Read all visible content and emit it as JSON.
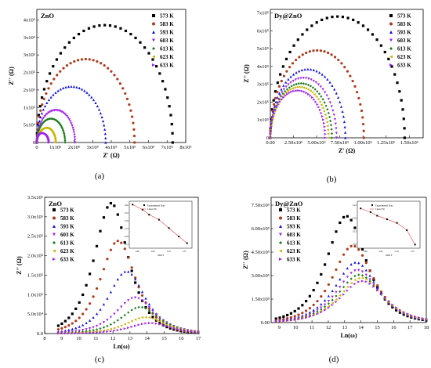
{
  "figure": {
    "colors": {
      "573 K": "#000000",
      "583 K": "#b03a1a",
      "593 K": "#1010e0",
      "603 K": "#a020f0",
      "613 K": "#1a7a1a",
      "623 K": "#c8b400",
      "633 K": "#a020f0"
    }
  },
  "chart_data": [
    {
      "id": "a",
      "type": "scatter",
      "caption": "(a)",
      "title": "ZnO",
      "xlabel": "Z' (Ω)",
      "ylabel": "Z'' (Ω)",
      "xlim": [
        0,
        800000
      ],
      "ylim": [
        0,
        380000
      ],
      "xticks": [
        0,
        100000,
        200000,
        300000,
        400000,
        500000,
        600000,
        700000,
        800000
      ],
      "xtick_labels": [
        "0",
        "1x10⁵",
        "2x10⁵",
        "3x10⁵",
        "4x10⁵",
        "5x10⁵",
        "6x10⁵",
        "7x10⁵",
        "8x10⁵"
      ],
      "yticks": [
        0,
        50000,
        100000,
        150000,
        200000,
        250000,
        300000,
        350000
      ],
      "ytick_labels": [
        "0",
        "5x10⁴",
        "1x10⁵",
        "2x10⁵",
        "2x10⁵",
        "3x10⁵",
        "3x10⁵",
        "4x10⁵"
      ],
      "legend_position": "top-right",
      "series": [
        {
          "name": "573 K",
          "kind": "arc",
          "r0": 0,
          "r1": 730000,
          "peak": 335000,
          "marker": "square"
        },
        {
          "name": "583 K",
          "kind": "arc",
          "r0": 0,
          "r1": 525000,
          "peak": 238000,
          "marker": "circle"
        },
        {
          "name": "593 K",
          "kind": "arc",
          "r0": 0,
          "r1": 370000,
          "peak": 160000,
          "marker": "triangle"
        },
        {
          "name": "603 K",
          "kind": "arc",
          "r0": 0,
          "r1": 205000,
          "peak": 92000,
          "marker": "triangle-down"
        },
        {
          "name": "613 K",
          "kind": "arc",
          "r0": 0,
          "r1": 152000,
          "peak": 68000,
          "marker": "diamond"
        },
        {
          "name": "623 K",
          "kind": "arc",
          "r0": 0,
          "r1": 100000,
          "peak": 42000,
          "marker": "triangle-left"
        },
        {
          "name": "633 K",
          "kind": "arc",
          "r0": 0,
          "r1": 65000,
          "peak": 27000,
          "marker": "triangle-right"
        }
      ]
    },
    {
      "id": "b",
      "type": "scatter",
      "caption": "(b)",
      "title": "Dy@ZnO",
      "xlabel": "Z' (Ω)",
      "ylabel": "Z'' (Ω)",
      "xlim": [
        0,
        1650000
      ],
      "ylim": [
        0,
        720000
      ],
      "xticks": [
        0,
        250000,
        500000,
        750000,
        1000000,
        1250000,
        1500000
      ],
      "xtick_labels": [
        "0.00",
        "2.50x10⁵",
        "5.00x10⁵",
        "7.50x10⁵",
        "1.00x10⁶",
        "1.25x10⁶",
        "1.50x10⁶"
      ],
      "yticks": [
        0,
        100000,
        200000,
        300000,
        400000,
        500000,
        600000,
        700000
      ],
      "ytick_labels": [
        "0",
        "1x10⁵",
        "2x10⁵",
        "3x10⁵",
        "4x10⁵",
        "5x10⁵",
        "6x10⁵",
        "7x10⁵"
      ],
      "legend_position": "top-right",
      "series": [
        {
          "name": "573 K",
          "kind": "arc",
          "r0": 0,
          "r1": 1450000,
          "peak": 680000,
          "marker": "square"
        },
        {
          "name": "583 K",
          "kind": "arc",
          "r0": 0,
          "r1": 1010000,
          "peak": 490000,
          "marker": "circle"
        },
        {
          "name": "593 K",
          "kind": "arc",
          "r0": 0,
          "r1": 810000,
          "peak": 385000,
          "marker": "triangle"
        },
        {
          "name": "603 K",
          "kind": "arc",
          "r0": 0,
          "r1": 715000,
          "peak": 335000,
          "marker": "triangle-down"
        },
        {
          "name": "613 K",
          "kind": "arc",
          "r0": 0,
          "r1": 665000,
          "peak": 305000,
          "marker": "diamond"
        },
        {
          "name": "623 K",
          "kind": "arc",
          "r0": 0,
          "r1": 625000,
          "peak": 285000,
          "marker": "triangle-left"
        },
        {
          "name": "633 K",
          "kind": "arc",
          "r0": 0,
          "r1": 595000,
          "peak": 265000,
          "marker": "triangle-right"
        }
      ]
    },
    {
      "id": "c",
      "type": "scatter",
      "caption": "(c)",
      "title": "ZnO",
      "xlabel": "Ln(ω)",
      "ylabel": "Z'' (Ω)",
      "xlim": [
        8,
        17
      ],
      "ylim": [
        0,
        350000
      ],
      "xticks": [
        8,
        9,
        10,
        11,
        12,
        13,
        14,
        15,
        16,
        17
      ],
      "xtick_labels": [
        "8",
        "9",
        "10",
        "11",
        "12",
        "13",
        "14",
        "15",
        "16",
        "17"
      ],
      "yticks": [
        0,
        50000,
        100000,
        150000,
        200000,
        250000,
        300000,
        350000
      ],
      "ytick_labels": [
        "0.0",
        "5.0x10⁴",
        "1.0x10⁵",
        "1.5x10⁵",
        "2.0x10⁵",
        "2.5x10⁵",
        "3.0x10⁵",
        "3.5x10⁵"
      ],
      "legend_position": "top-left",
      "series": [
        {
          "name": "573 K",
          "kind": "peak",
          "x_start": 8.8,
          "x_end": 17,
          "center": 11.9,
          "peak": 335000,
          "width": 1.15,
          "marker": "square"
        },
        {
          "name": "583 K",
          "kind": "peak",
          "x_start": 8.8,
          "x_end": 17,
          "center": 12.3,
          "peak": 238000,
          "width": 1.2,
          "marker": "circle"
        },
        {
          "name": "593 K",
          "kind": "peak",
          "x_start": 8.8,
          "x_end": 17,
          "center": 12.8,
          "peak": 160000,
          "width": 1.25,
          "marker": "triangle"
        },
        {
          "name": "603 K",
          "kind": "peak",
          "x_start": 8.8,
          "x_end": 17,
          "center": 13.3,
          "peak": 92000,
          "width": 1.3,
          "marker": "triangle-down"
        },
        {
          "name": "613 K",
          "kind": "peak",
          "x_start": 8.8,
          "x_end": 17,
          "center": 13.6,
          "peak": 68000,
          "width": 1.3,
          "marker": "diamond"
        },
        {
          "name": "623 K",
          "kind": "peak",
          "x_start": 8.8,
          "x_end": 17,
          "center": 13.9,
          "peak": 42000,
          "width": 1.35,
          "marker": "triangle-left"
        },
        {
          "name": "633 K",
          "kind": "peak",
          "x_start": 8.8,
          "x_end": 17,
          "center": 14.2,
          "peak": 27000,
          "width": 1.4,
          "marker": "triangle-right"
        }
      ],
      "inset": {
        "type": "line",
        "legend": [
          "Experimental Data",
          "Linear Fit"
        ],
        "xlabel": "1000/T",
        "xtick_labels": [
          "1.60",
          "1.65",
          "1.70",
          "1.75"
        ],
        "ytick_labels": [
          "11.5",
          "12.0",
          "12.5",
          "13.0",
          "13.5",
          "14.0"
        ],
        "x": [
          1.58,
          1.61,
          1.63,
          1.66,
          1.69,
          1.72,
          1.745
        ],
        "y": [
          14.2,
          13.9,
          13.6,
          13.3,
          12.8,
          12.3,
          11.9
        ],
        "xlim": [
          1.57,
          1.76
        ],
        "ylim": [
          11.6,
          14.4
        ]
      }
    },
    {
      "id": "d",
      "type": "scatter",
      "caption": "(d)",
      "title": "Dy@ZnO",
      "xlabel": "Ln(ω)",
      "ylabel": "Z'' (Ω)",
      "xlim": [
        8.5,
        18
      ],
      "ylim": [
        0,
        800000
      ],
      "xticks": [
        9,
        10,
        11,
        12,
        13,
        14,
        15,
        16,
        17,
        18
      ],
      "xtick_labels": [
        "9",
        "10",
        "11",
        "12",
        "13",
        "14",
        "15",
        "16",
        "17",
        "18"
      ],
      "yticks": [
        0,
        150000,
        300000,
        450000,
        600000,
        750000
      ],
      "ytick_labels": [
        "0.00",
        "1.50x10⁵",
        "3.00x10⁵",
        "4.50x10⁵",
        "6.00x10⁵",
        "7.50x10⁵"
      ],
      "legend_position": "top-left",
      "series": [
        {
          "name": "573 K",
          "kind": "peak",
          "x_start": 8.8,
          "x_end": 18,
          "center": 13.1,
          "peak": 680000,
          "width": 1.4,
          "marker": "square"
        },
        {
          "name": "583 K",
          "kind": "peak",
          "x_start": 8.8,
          "x_end": 18,
          "center": 13.5,
          "peak": 490000,
          "width": 1.45,
          "marker": "circle"
        },
        {
          "name": "593 K",
          "kind": "peak",
          "x_start": 8.8,
          "x_end": 18,
          "center": 13.7,
          "peak": 385000,
          "width": 1.5,
          "marker": "triangle"
        },
        {
          "name": "603 K",
          "kind": "peak",
          "x_start": 8.8,
          "x_end": 18,
          "center": 13.8,
          "peak": 335000,
          "width": 1.5,
          "marker": "triangle-down"
        },
        {
          "name": "613 K",
          "kind": "peak",
          "x_start": 8.8,
          "x_end": 18,
          "center": 13.9,
          "peak": 305000,
          "width": 1.55,
          "marker": "diamond"
        },
        {
          "name": "623 K",
          "kind": "peak",
          "x_start": 8.8,
          "x_end": 18,
          "center": 14.0,
          "peak": 285000,
          "width": 1.55,
          "marker": "triangle-left"
        },
        {
          "name": "633 K",
          "kind": "peak",
          "x_start": 8.8,
          "x_end": 18,
          "center": 14.1,
          "peak": 265000,
          "width": 1.6,
          "marker": "triangle-right"
        }
      ],
      "inset": {
        "type": "line",
        "legend": [
          "Experimental Data",
          "Linear Fit"
        ],
        "xlabel": "1000/T",
        "xtick_labels": [
          "1.60",
          "1.65",
          "1.70",
          "1.75"
        ],
        "ytick_labels": [
          "13.0",
          "13.5",
          "14.0",
          "14.5"
        ],
        "x": [
          1.58,
          1.61,
          1.63,
          1.66,
          1.69,
          1.72,
          1.745
        ],
        "y": [
          14.1,
          14.0,
          13.9,
          13.8,
          13.7,
          13.5,
          13.1
        ],
        "xlim": [
          1.57,
          1.76
        ],
        "ylim": [
          13.0,
          14.3
        ]
      }
    }
  ]
}
